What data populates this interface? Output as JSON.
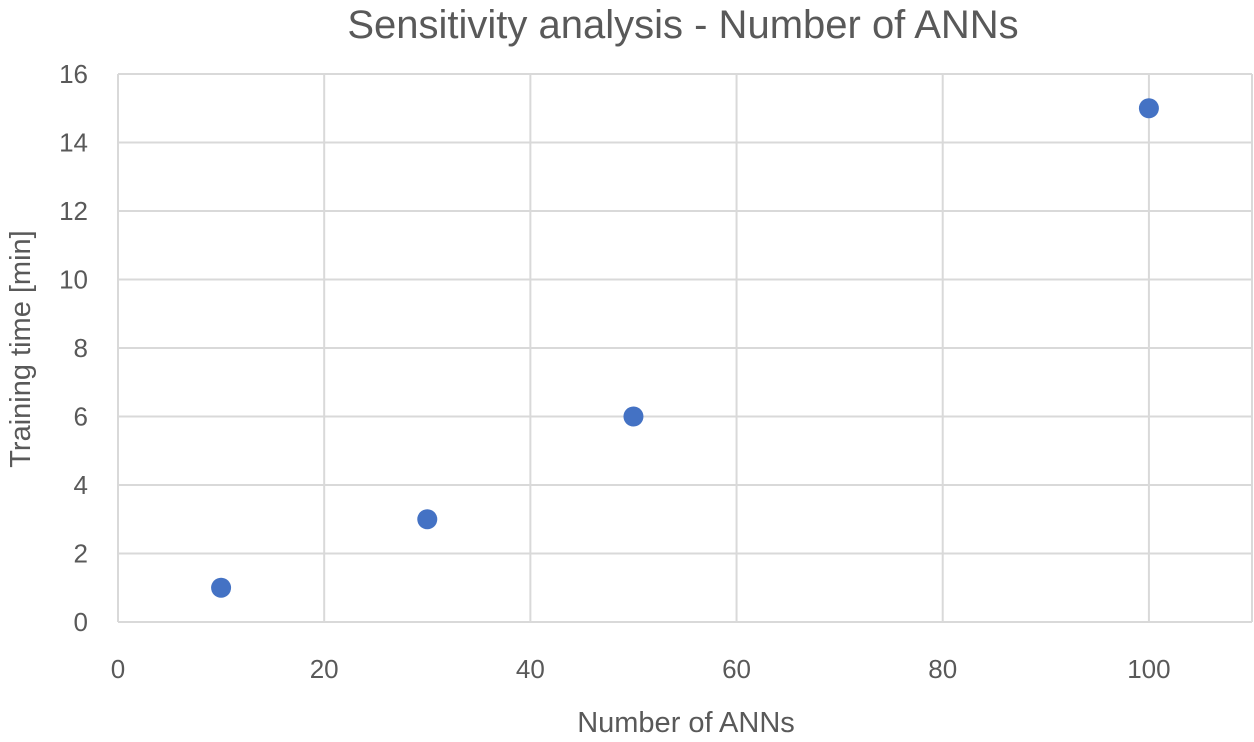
{
  "chart_data": {
    "type": "scatter",
    "title": "Sensitivity analysis - Number of ANNs",
    "xlabel": "Number of ANNs",
    "ylabel": "Training time [min]",
    "xlim": [
      0,
      110
    ],
    "ylim": [
      0,
      16
    ],
    "xticks": [
      0,
      20,
      40,
      60,
      80,
      100
    ],
    "yticks": [
      0,
      2,
      4,
      6,
      8,
      10,
      12,
      14,
      16
    ],
    "grid": true,
    "legend": "none",
    "series": [
      {
        "color": "#4472c4",
        "points": [
          {
            "x": 10,
            "y": 1
          },
          {
            "x": 30,
            "y": 3
          },
          {
            "x": 50,
            "y": 6
          },
          {
            "x": 100,
            "y": 15
          }
        ]
      }
    ]
  },
  "colors": {
    "grid": "#d9d9d9",
    "text": "#595959",
    "marker": "#4472c4"
  }
}
